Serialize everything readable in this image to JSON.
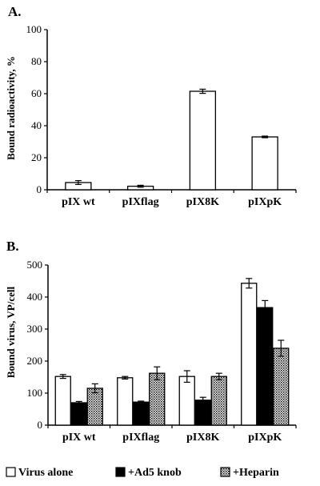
{
  "chart_data": [
    {
      "type": "bar",
      "panel_label": "A.",
      "ylabel": "Bound radioactivity, %",
      "xlabel": "",
      "ylim": [
        0,
        100
      ],
      "yticks": [
        "0",
        "20",
        "40",
        "60",
        "80",
        "100"
      ],
      "categories": [
        "pIX wt",
        "pIXflag",
        "pIX8K",
        "pIXpK"
      ],
      "series": [
        {
          "values": [
            4.5,
            2.2,
            61.5,
            33.0
          ],
          "errors": [
            1.2,
            0.6,
            1.3,
            0.5
          ],
          "fill": "#ffffff"
        }
      ],
      "grid": false
    },
    {
      "type": "bar",
      "panel_label": "B.",
      "ylabel": "Bound virus, VP/cell",
      "xlabel": "",
      "ylim": [
        0,
        500
      ],
      "yticks": [
        "0",
        "100",
        "200",
        "300",
        "400",
        "500"
      ],
      "categories": [
        "pIX wt",
        "pIXflag",
        "pIX8K",
        "pIXpK"
      ],
      "series": [
        {
          "name": "Virus alone",
          "values": [
            152,
            148,
            152,
            443
          ],
          "errors": [
            6,
            4,
            18,
            15
          ],
          "fill": "#ffffff"
        },
        {
          "name": "+Ad5 knob",
          "values": [
            70,
            72,
            78,
            367
          ],
          "errors": [
            4,
            3,
            9,
            22
          ],
          "fill": "#000000"
        },
        {
          "name": "+Heparin",
          "values": [
            115,
            162,
            152,
            240
          ],
          "errors": [
            14,
            20,
            10,
            25
          ],
          "fill": "pattern"
        }
      ],
      "legend": "bottom",
      "grid": false
    }
  ]
}
